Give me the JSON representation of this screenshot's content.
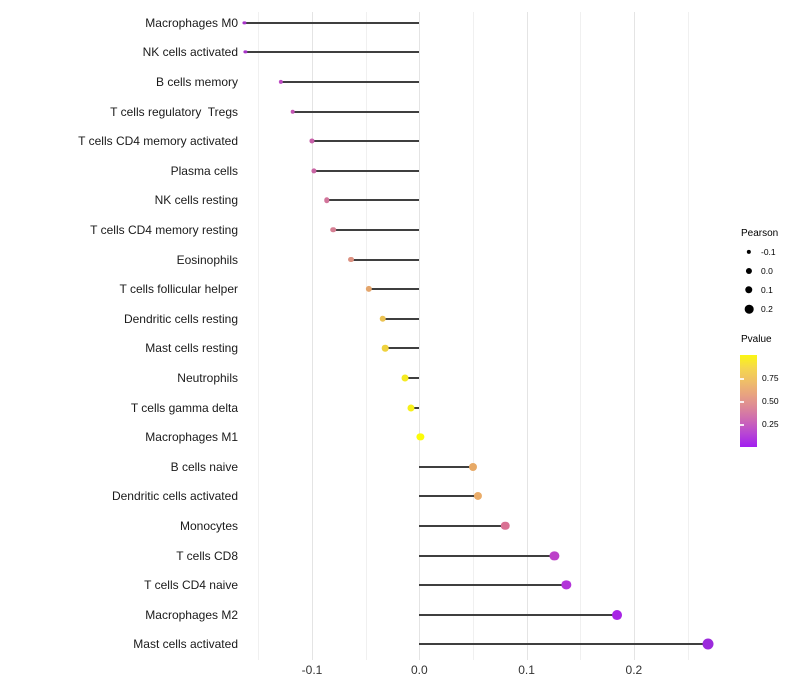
{
  "chart_data": {
    "type": "scatter",
    "subtype": "lollipop",
    "title": "",
    "xlabel": "",
    "ylabel": "",
    "xlim": [
      -0.185,
      0.29
    ],
    "grid": true,
    "x_ticks_major": [
      -0.1,
      0.0,
      0.1,
      0.2
    ],
    "x_tick_labels": [
      "-0.1",
      "0.0",
      "0.1",
      "0.2"
    ],
    "x_ticks_minor": [
      -0.15,
      -0.05,
      0.05,
      0.15,
      0.25
    ],
    "points": [
      {
        "label": "Macrophages M0",
        "pearson": -0.163,
        "pvalue": 0.1,
        "color": "#a733c8"
      },
      {
        "label": "NK cells activated",
        "pearson": -0.162,
        "pvalue": 0.1,
        "color": "#a733c8"
      },
      {
        "label": "B cells memory",
        "pearson": -0.129,
        "pvalue": 0.18,
        "color": "#be4cc4"
      },
      {
        "label": "T cells regulatory  Tregs",
        "pearson": -0.118,
        "pvalue": 0.22,
        "color": "#c355b4"
      },
      {
        "label": "T cells CD4 memory activated",
        "pearson": -0.1,
        "pvalue": 0.27,
        "color": "#c75fa9"
      },
      {
        "label": "Plasma cells",
        "pearson": -0.098,
        "pvalue": 0.29,
        "color": "#c965a4"
      },
      {
        "label": "NK cells resting",
        "pearson": -0.086,
        "pvalue": 0.36,
        "color": "#d2759b"
      },
      {
        "label": "T cells CD4 memory resting",
        "pearson": -0.08,
        "pvalue": 0.4,
        "color": "#d57f93"
      },
      {
        "label": "Eosinophils",
        "pearson": -0.064,
        "pvalue": 0.48,
        "color": "#dc9181"
      },
      {
        "label": "T cells follicular helper",
        "pearson": -0.047,
        "pvalue": 0.58,
        "color": "#e4a56b"
      },
      {
        "label": "Dendritic cells resting",
        "pearson": -0.034,
        "pvalue": 0.7,
        "color": "#ebc253"
      },
      {
        "label": "Mast cells resting",
        "pearson": -0.032,
        "pvalue": 0.77,
        "color": "#efd23e"
      },
      {
        "label": "Neutrophils",
        "pearson": -0.013,
        "pvalue": 0.88,
        "color": "#f5ea21"
      },
      {
        "label": "T cells gamma delta",
        "pearson": -0.008,
        "pvalue": 0.91,
        "color": "#f7f01a"
      },
      {
        "label": "Macrophages M1",
        "pearson": 0.001,
        "pvalue": 0.98,
        "color": "#fcfc08"
      },
      {
        "label": "B cells naive",
        "pearson": 0.05,
        "pvalue": 0.6,
        "color": "#e7a966"
      },
      {
        "label": "Dendritic cells activated",
        "pearson": 0.055,
        "pvalue": 0.62,
        "color": "#eaac69"
      },
      {
        "label": "Monocytes",
        "pearson": 0.08,
        "pvalue": 0.38,
        "color": "#d97193"
      },
      {
        "label": "T cells CD8",
        "pearson": 0.126,
        "pvalue": 0.15,
        "color": "#bc41c9"
      },
      {
        "label": "T cells CD4 naive",
        "pearson": 0.137,
        "pvalue": 0.11,
        "color": "#b233d9"
      },
      {
        "label": "Macrophages M2",
        "pearson": 0.184,
        "pvalue": 0.05,
        "color": "#a825e5"
      },
      {
        "label": "Mast cells activated",
        "pearson": 0.269,
        "pvalue": 0.01,
        "color": "#9c2adc"
      }
    ],
    "legend_size": {
      "title": "Pearson",
      "values": [
        -0.1,
        0.0,
        0.1,
        0.2
      ],
      "labels": [
        "-0.1",
        "0.0",
        "0.1",
        "0.2"
      ],
      "dot_color": "#000000"
    },
    "legend_color": {
      "title": "Pvalue",
      "tick_labels": [
        "0.75",
        "0.50",
        "0.25"
      ],
      "tick_positions": [
        0.75,
        0.5,
        0.25
      ],
      "gradient_stops_bottom_to_top": [
        "#a21ef0",
        "#b745d5",
        "#cc67b5",
        "#dc8798",
        "#e8a380",
        "#efbe68",
        "#f5d74e",
        "#fbf612"
      ]
    },
    "layout_hints": {
      "legend_position": "right",
      "stem_color": "#3f3f3f",
      "background": "#ffffff"
    }
  }
}
